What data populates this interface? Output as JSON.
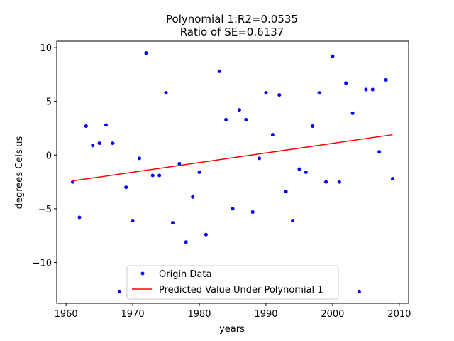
{
  "chart_data": {
    "type": "scatter",
    "title_line1": "Polynomial 1:R2=0.0535",
    "title_line2": "Ratio of SE=0.6137",
    "xlabel": "years",
    "ylabel": "degrees Celsius",
    "xlim": [
      1958.6,
      2011.4
    ],
    "ylim": [
      -13.8,
      10.6
    ],
    "xticks": [
      1960,
      1970,
      1980,
      1990,
      2000,
      2010
    ],
    "yticks": [
      -10,
      -5,
      0,
      5,
      10
    ],
    "ytick_labels": [
      "−10",
      "−5",
      "0",
      "5",
      "10"
    ],
    "series": [
      {
        "name": "Origin Data",
        "kind": "points",
        "color": "#0000ff",
        "points": [
          [
            1961,
            -2.5
          ],
          [
            1962,
            -5.8
          ],
          [
            1963,
            2.7
          ],
          [
            1964,
            0.9
          ],
          [
            1965,
            1.1
          ],
          [
            1966,
            2.8
          ],
          [
            1967,
            1.1
          ],
          [
            1968,
            -12.7
          ],
          [
            1969,
            -3.0
          ],
          [
            1970,
            -6.1
          ],
          [
            1971,
            -0.3
          ],
          [
            1972,
            9.5
          ],
          [
            1973,
            -1.9
          ],
          [
            1974,
            -1.9
          ],
          [
            1975,
            5.8
          ],
          [
            1976,
            -6.3
          ],
          [
            1977,
            -0.8
          ],
          [
            1978,
            -8.1
          ],
          [
            1979,
            -3.9
          ],
          [
            1980,
            -1.6
          ],
          [
            1981,
            -7.4
          ],
          [
            1983,
            7.8
          ],
          [
            1984,
            3.3
          ],
          [
            1985,
            -5.0
          ],
          [
            1986,
            4.2
          ],
          [
            1987,
            3.3
          ],
          [
            1988,
            -5.3
          ],
          [
            1989,
            -0.3
          ],
          [
            1990,
            5.8
          ],
          [
            1991,
            1.9
          ],
          [
            1992,
            5.6
          ],
          [
            1993,
            -3.4
          ],
          [
            1994,
            -6.1
          ],
          [
            1995,
            -1.3
          ],
          [
            1996,
            -1.6
          ],
          [
            1997,
            2.7
          ],
          [
            1998,
            5.8
          ],
          [
            1999,
            -2.5
          ],
          [
            2000,
            9.2
          ],
          [
            2001,
            -2.5
          ],
          [
            2002,
            6.7
          ],
          [
            2003,
            3.9
          ],
          [
            2004,
            -12.7
          ],
          [
            2005,
            6.1
          ],
          [
            2006,
            6.1
          ],
          [
            2007,
            0.3
          ],
          [
            2008,
            7.0
          ],
          [
            2009,
            -2.2
          ]
        ]
      },
      {
        "name": "Predicted Value Under Polynomial 1",
        "kind": "line",
        "color": "#ff0000",
        "points": [
          [
            1961,
            -2.4
          ],
          [
            2009,
            1.9
          ]
        ]
      }
    ],
    "legend_position": "lower-center"
  }
}
